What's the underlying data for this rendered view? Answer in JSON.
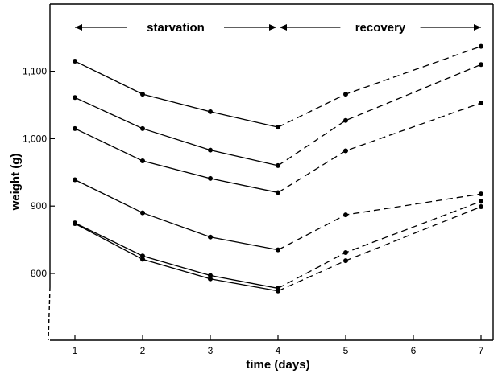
{
  "chart_data": {
    "type": "line",
    "title": "",
    "xlabel": "time (days)",
    "ylabel": "weight (g)",
    "xlim": [
      0.6,
      7.3
    ],
    "ylim": [
      700,
      1200
    ],
    "x_ticks": [
      1,
      2,
      3,
      4,
      5,
      6,
      7
    ],
    "x_tick_labels": [
      "1",
      "2",
      "3",
      "4",
      "5",
      "6",
      "7"
    ],
    "y_ticks": [
      800,
      900,
      1000,
      1100
    ],
    "y_tick_labels": [
      "800",
      "900",
      "1,000",
      "1,100"
    ],
    "grid": false,
    "legend": "none",
    "line_color": "#000000",
    "phases": [
      {
        "label": "starvation",
        "from": 1,
        "to": 4,
        "line_style": "solid"
      },
      {
        "label": "recovery",
        "from": 4,
        "to": 7,
        "line_style": "dashed"
      }
    ],
    "x": [
      1,
      2,
      3,
      4,
      5,
      7
    ],
    "series": [
      {
        "values": [
          1115,
          1066,
          1040,
          1017,
          1066,
          1137
        ]
      },
      {
        "values": [
          1061,
          1015,
          983,
          960,
          1027,
          1110
        ]
      },
      {
        "values": [
          1015,
          967,
          941,
          920,
          982,
          1053
        ]
      },
      {
        "values": [
          939,
          890,
          854,
          835,
          887,
          918
        ]
      },
      {
        "values": [
          875,
          826,
          797,
          778,
          831,
          907
        ]
      },
      {
        "values": [
          874,
          821,
          792,
          774,
          819,
          899
        ]
      }
    ]
  }
}
